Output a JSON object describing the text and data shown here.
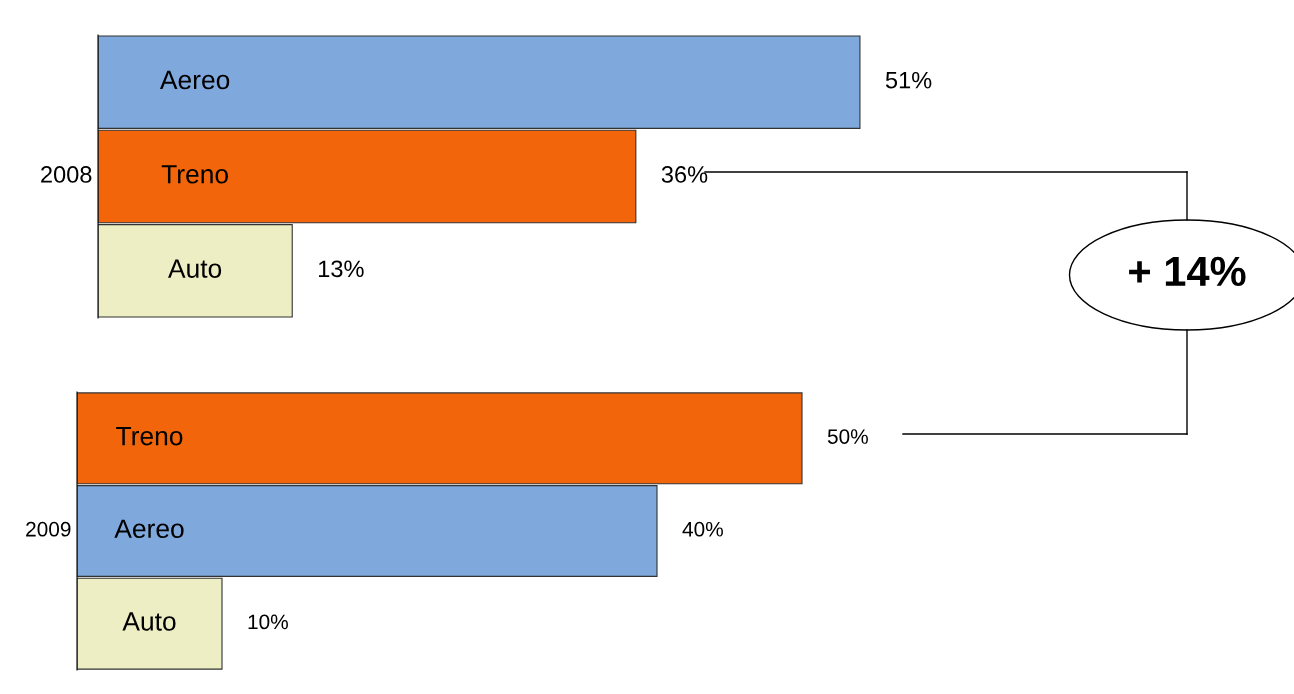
{
  "chart_data": [
    {
      "type": "bar",
      "orientation": "horizontal",
      "ylabel": "2008",
      "categories": [
        "Aereo",
        "Treno",
        "Auto"
      ],
      "values": [
        51,
        36,
        13
      ],
      "colors": [
        "#7fa8dc",
        "#f2650a",
        "#eeeec4"
      ],
      "value_labels": [
        "51%",
        "36%",
        "13%"
      ],
      "annotations": [
        "+ 14%"
      ]
    },
    {
      "type": "bar",
      "orientation": "horizontal",
      "ylabel": "2009",
      "categories": [
        "Treno",
        "Aereo",
        "Auto"
      ],
      "values": [
        50,
        40,
        10
      ],
      "colors": [
        "#f2650a",
        "#7fa8dc",
        "#eeeec4"
      ],
      "value_labels": [
        "50%",
        "40%",
        "10%"
      ]
    }
  ]
}
